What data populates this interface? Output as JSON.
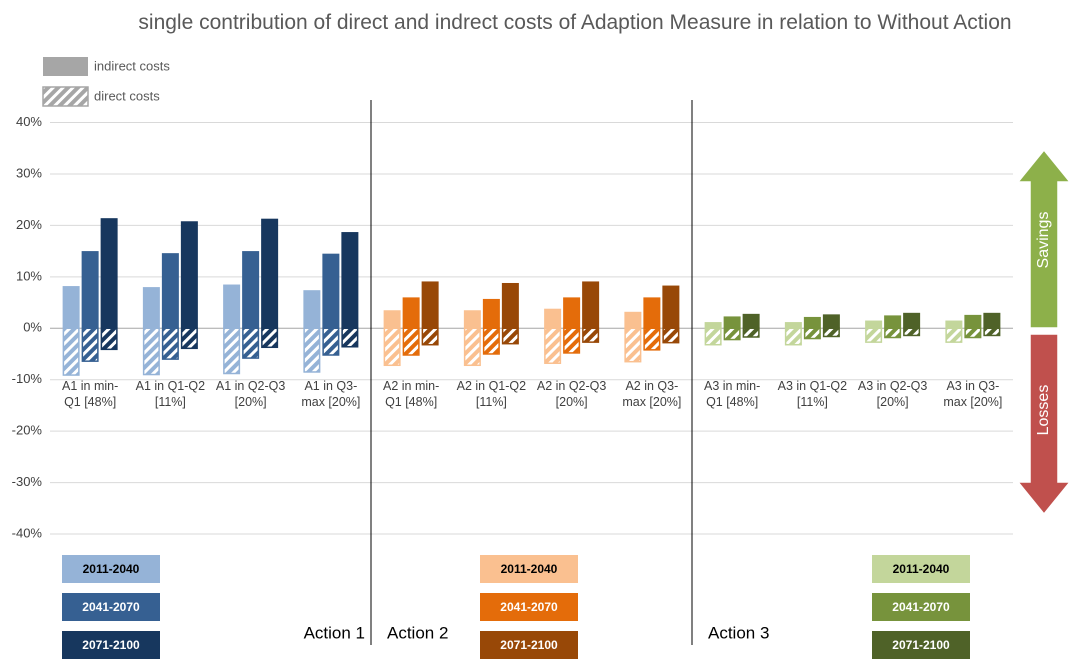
{
  "chart_data": {
    "type": "bar",
    "title": "single contribution of direct and indrect costs of Adaption Measure in relation to Without Action",
    "categories": [
      "A1 in min-Q1 [48%]",
      "A1 in Q1-Q2 [11%]",
      "A1 in Q2-Q3 [20%]",
      "A1 in Q3-max [20%]",
      "A2 in min-Q1 [48%]",
      "A2 in Q1-Q2 [11%]",
      "A2 in Q2-Q3 [20%]",
      "A2 in Q3-max [20%]",
      "A3 in min-Q1 [48%]",
      "A3 in Q1-Q2 [11%]",
      "A3 in Q2-Q3 [20%]",
      "A3 in Q3-max [20%]"
    ],
    "cost_types": [
      {
        "name": "indirect costs",
        "color": "#a6a6a6"
      },
      {
        "name": "direct costs",
        "color": "#a6a6a6"
      }
    ],
    "series": [
      {
        "name": "2011-2040",
        "indirect": [
          8.2,
          8.0,
          8.5,
          7.4,
          3.5,
          3.5,
          3.8,
          3.2,
          1.2,
          1.2,
          1.5,
          1.5
        ],
        "direct": [
          -9.1,
          -9.0,
          -8.8,
          -8.5,
          -7.2,
          -7.2,
          -6.8,
          -6.5,
          -3.2,
          -3.2,
          -2.7,
          -2.7
        ]
      },
      {
        "name": "2041-2070",
        "indirect": [
          15.0,
          14.6,
          15.0,
          14.5,
          6.0,
          5.7,
          6.0,
          6.0,
          2.3,
          2.2,
          2.5,
          2.6
        ],
        "direct": [
          -6.4,
          -6.0,
          -5.8,
          -5.2,
          -5.2,
          -5.0,
          -4.8,
          -4.2,
          -2.2,
          -2.0,
          -1.8,
          -1.8
        ]
      },
      {
        "name": "2071-2100",
        "indirect": [
          21.4,
          20.8,
          21.3,
          18.7,
          9.1,
          8.8,
          9.1,
          8.3,
          2.8,
          2.7,
          3.0,
          3.0
        ],
        "direct": [
          -4.1,
          -3.9,
          -3.7,
          -3.6,
          -3.2,
          -3.0,
          -2.7,
          -2.8,
          -1.7,
          -1.6,
          -1.4,
          -1.4
        ]
      }
    ],
    "actions": [
      {
        "name": "Action 1",
        "colors": [
          "#95b3d7",
          "#366092",
          "#17375e"
        ]
      },
      {
        "name": "Action 2",
        "colors": [
          "#fac090",
          "#e46c0a",
          "#984807"
        ]
      },
      {
        "name": "Action 3",
        "colors": [
          "#c3d69b",
          "#77933c",
          "#4f6228"
        ]
      }
    ],
    "ylim": [
      -40,
      40
    ],
    "yticks": [
      {
        "value": 40,
        "label": "40%"
      },
      {
        "value": 30,
        "label": "30%"
      },
      {
        "value": 20,
        "label": "20%"
      },
      {
        "value": 10,
        "label": "10%"
      },
      {
        "value": 0,
        "label": "0%"
      },
      {
        "value": -10,
        "label": "-10%"
      },
      {
        "value": -20,
        "label": "-20%"
      },
      {
        "value": -30,
        "label": "-30%"
      },
      {
        "value": -40,
        "label": "-40%"
      }
    ],
    "grid": true,
    "annotations": [
      {
        "text": "Savings",
        "color": "#8db04a"
      },
      {
        "text": "Losses",
        "color": "#c0504d"
      }
    ]
  }
}
